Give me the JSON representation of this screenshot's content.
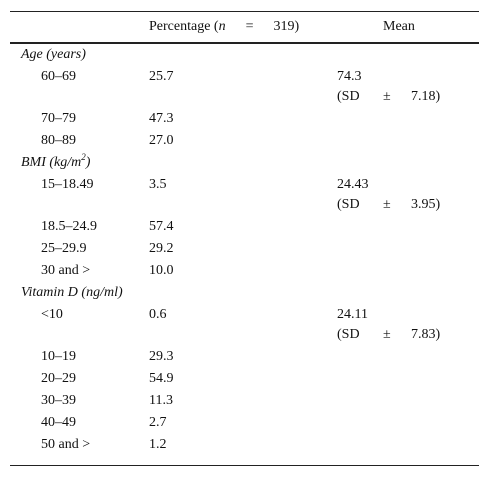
{
  "header": {
    "percentage": {
      "text": "Percentage (",
      "n_symbol": "n",
      "equals": "=",
      "n_value": "319)"
    },
    "mean": "Mean"
  },
  "groups": [
    {
      "label": "Age (years)",
      "rows": [
        {
          "label": "60–69",
          "percentage": "25.7",
          "mean": "74.3",
          "sd_open": "(SD",
          "pm": "±",
          "sd_value": "7.18)"
        },
        {
          "label": "70–79",
          "percentage": "47.3"
        },
        {
          "label": "80–89",
          "percentage": "27.0"
        }
      ]
    },
    {
      "label": "BMI (kg/m",
      "label_sup": "2",
      "label_close": ")",
      "rows": [
        {
          "label": "15–18.49",
          "percentage": "3.5",
          "mean": "24.43",
          "sd_open": "(SD",
          "pm": "±",
          "sd_value": "3.95)"
        },
        {
          "label": "18.5–24.9",
          "percentage": "57.4"
        },
        {
          "label": "25–29.9",
          "percentage": "29.2"
        },
        {
          "label": "30 and >",
          "percentage": "10.0"
        }
      ]
    },
    {
      "label": "Vitamin D (ng/ml)",
      "rows": [
        {
          "label": "<10",
          "percentage": "0.6",
          "mean": "24.11",
          "sd_open": "(SD",
          "pm": "±",
          "sd_value": "7.83)"
        },
        {
          "label": "10–19",
          "percentage": "29.3"
        },
        {
          "label": "20–29",
          "percentage": "54.9"
        },
        {
          "label": "30–39",
          "percentage": "11.3"
        },
        {
          "label": "40–49",
          "percentage": "2.7"
        },
        {
          "label": "50 and >",
          "percentage": "1.2"
        }
      ]
    }
  ]
}
